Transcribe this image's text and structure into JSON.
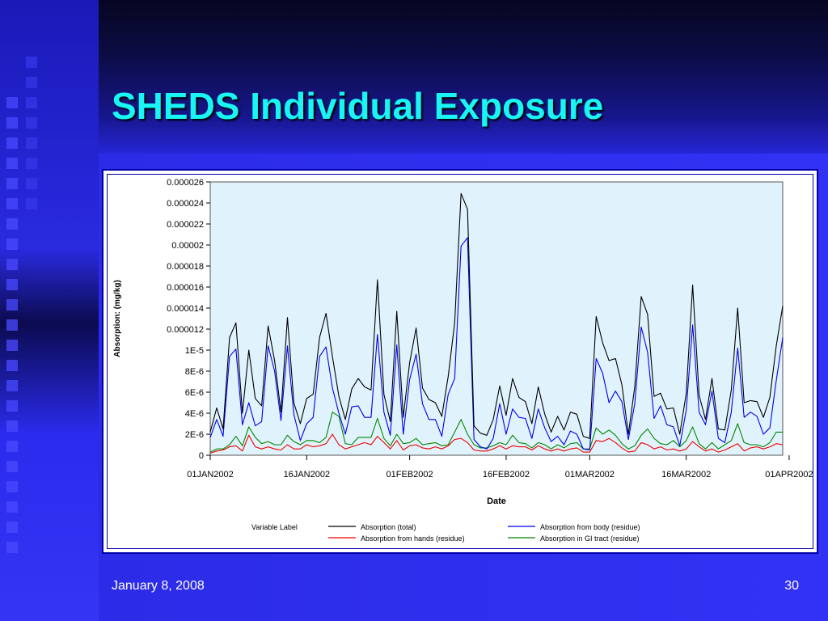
{
  "slide": {
    "title": "SHEDS Individual Exposure",
    "footer_date": "January 8, 2008",
    "slide_number": "30"
  },
  "colors": {
    "title": "#19f5f5",
    "plot_bg": "#e0f2fb",
    "total": "#000000",
    "body": "#0000ee",
    "hands": "#ee0000",
    "gi": "#008800"
  },
  "chart_data": {
    "type": "line",
    "xlabel": "Date",
    "ylabel": "Absorption: (mg/kg)",
    "x_start": "01JAN2002",
    "x_end": "01APR2002",
    "x_ticks": [
      {
        "label": "01JAN2002",
        "day": 0
      },
      {
        "label": "16JAN2002",
        "day": 15
      },
      {
        "label": "01FEB2002",
        "day": 31
      },
      {
        "label": "16FEB2002",
        "day": 46
      },
      {
        "label": "01MAR2002",
        "day": 59
      },
      {
        "label": "16MAR2002",
        "day": 74
      },
      {
        "label": "01APR2002",
        "day": 90
      }
    ],
    "y_ticks": [
      "0",
      "2E-6",
      "4E-6",
      "6E-6",
      "8E-6",
      "1E-5",
      "0.000012",
      "0.000014",
      "0.000016",
      "0.000018",
      "0.00002",
      "0.000022",
      "0.000024",
      "0.000026"
    ],
    "ylim": [
      0,
      2.6e-05
    ],
    "legend_title": "Variable Label",
    "legend_position": "bottom",
    "series": [
      {
        "name": "Absorption (total)",
        "color_key": "total",
        "values": [
          2.2,
          4.5,
          2.5,
          11.2,
          12.6,
          4.0,
          10.0,
          5.4,
          4.7,
          12.3,
          9.0,
          4.1,
          13.1,
          5.0,
          3.0,
          5.4,
          5.8,
          11.2,
          13.5,
          9.4,
          5.6,
          3.4,
          6.3,
          7.3,
          6.5,
          6.2,
          16.7,
          5.8,
          3.2,
          13.7,
          3.6,
          8.8,
          12.1,
          6.4,
          5.3,
          5.0,
          3.7,
          7.5,
          12.6,
          24.9,
          23.4,
          2.8,
          2.1,
          1.9,
          3.4,
          6.6,
          3.8,
          7.3,
          5.5,
          5.1,
          3.0,
          6.5,
          3.9,
          2.2,
          3.7,
          2.4,
          4.1,
          3.9,
          1.8,
          1.6,
          13.2,
          10.7,
          9.0,
          9.2,
          6.7,
          2.0,
          6.5,
          15.1,
          13.4,
          5.6,
          5.9,
          4.4,
          4.5,
          2.0,
          5.9,
          16.2,
          5.7,
          3.4,
          7.3,
          2.5,
          2.4,
          6.2,
          14.0,
          5.0,
          5.2,
          5.1,
          3.6,
          5.5,
          10.4,
          14.2
        ]
      },
      {
        "name": "Absorption from body (residue)",
        "color_key": "body",
        "values": [
          1.7,
          3.4,
          1.8,
          9.4,
          10.1,
          2.9,
          5.0,
          2.8,
          3.2,
          10.4,
          8.0,
          3.3,
          10.4,
          3.9,
          1.4,
          3.0,
          3.6,
          9.4,
          10.3,
          6.4,
          4.0,
          2.0,
          4.6,
          4.7,
          3.6,
          3.6,
          11.5,
          4.1,
          1.9,
          10.5,
          2.0,
          7.2,
          9.6,
          4.9,
          3.4,
          3.4,
          1.8,
          5.8,
          7.3,
          19.9,
          20.7,
          1.5,
          0.8,
          0.6,
          1.6,
          4.9,
          2.0,
          4.4,
          3.6,
          3.5,
          1.6,
          4.4,
          2.6,
          1.3,
          1.8,
          1.0,
          2.3,
          2.0,
          0.6,
          0.5,
          9.2,
          7.8,
          5.0,
          6.1,
          5.1,
          1.5,
          4.9,
          12.2,
          9.8,
          3.5,
          4.7,
          2.9,
          2.7,
          0.9,
          4.3,
          12.4,
          4.1,
          2.9,
          6.1,
          1.6,
          1.2,
          4.1,
          10.2,
          3.6,
          4.1,
          3.7,
          2.0,
          2.6,
          7.1,
          11.2
        ]
      },
      {
        "name": "Absorption from hands (residue)",
        "color_key": "hands",
        "values": [
          0.2,
          0.4,
          0.5,
          0.8,
          0.9,
          0.4,
          1.9,
          0.8,
          0.6,
          0.8,
          0.6,
          0.5,
          1.0,
          0.6,
          0.6,
          1.0,
          0.8,
          0.9,
          1.1,
          2.0,
          1.0,
          0.6,
          0.8,
          1.0,
          1.2,
          1.0,
          1.8,
          1.2,
          0.6,
          1.4,
          0.5,
          0.9,
          1.0,
          0.7,
          0.6,
          0.8,
          0.6,
          0.9,
          1.5,
          1.6,
          1.2,
          0.5,
          0.4,
          0.4,
          0.6,
          0.9,
          0.6,
          0.9,
          0.8,
          0.8,
          0.5,
          0.9,
          0.6,
          0.4,
          0.6,
          0.4,
          0.6,
          0.7,
          0.3,
          0.3,
          1.4,
          1.3,
          1.6,
          1.2,
          0.7,
          0.3,
          0.4,
          1.2,
          1.0,
          0.6,
          0.8,
          0.5,
          0.6,
          0.4,
          0.6,
          1.3,
          0.8,
          0.4,
          0.6,
          0.3,
          0.5,
          0.8,
          1.1,
          0.4,
          0.7,
          0.8,
          0.6,
          0.8,
          1.1,
          1.0
        ]
      },
      {
        "name": "Absorption in GI tract (residue)",
        "color_key": "gi",
        "values": [
          0.3,
          0.6,
          0.6,
          1.0,
          1.8,
          0.9,
          2.7,
          1.7,
          1.1,
          1.3,
          1.0,
          1.0,
          1.9,
          1.3,
          1.0,
          1.4,
          1.4,
          1.2,
          1.7,
          4.1,
          3.7,
          1.1,
          1.0,
          1.7,
          1.7,
          1.7,
          3.5,
          1.6,
          0.9,
          2.0,
          1.1,
          1.2,
          1.6,
          1.0,
          1.1,
          1.2,
          0.9,
          1.0,
          2.2,
          3.4,
          2.0,
          1.0,
          0.7,
          0.7,
          0.9,
          1.2,
          1.0,
          1.9,
          1.2,
          1.1,
          0.7,
          1.2,
          1.0,
          0.6,
          1.0,
          0.7,
          1.1,
          1.2,
          0.6,
          0.6,
          2.6,
          2.0,
          2.4,
          1.9,
          1.1,
          0.6,
          0.9,
          1.9,
          2.5,
          1.6,
          1.1,
          1.0,
          1.4,
          0.8,
          1.4,
          2.7,
          1.1,
          0.6,
          1.2,
          0.6,
          1.0,
          1.4,
          3.0,
          1.2,
          1.0,
          1.0,
          0.8,
          1.2,
          2.2,
          2.2
        ]
      }
    ]
  }
}
